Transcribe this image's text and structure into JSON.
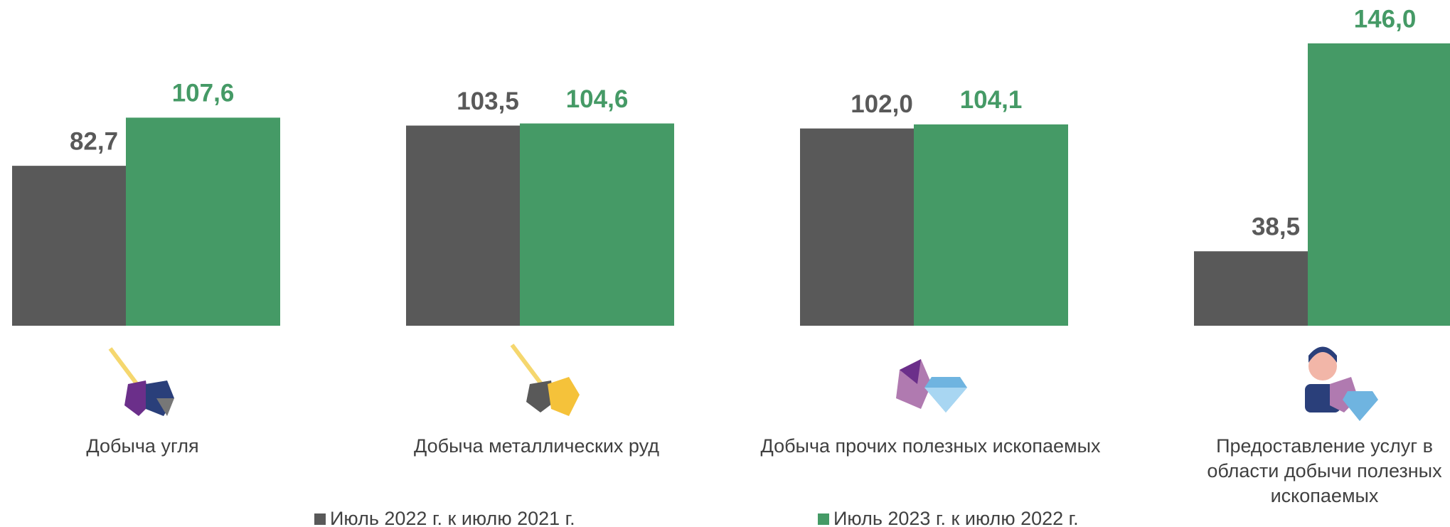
{
  "chart_data": {
    "type": "bar",
    "categories": [
      "Добыча угля",
      "Добыча металлических руд",
      "Добыча прочих полезных ископаемых",
      "Предоставление услуг в области добычи полезных ископаемых"
    ],
    "series": [
      {
        "name": "Июль 2022 г. к июлю 2021 г.",
        "color": "#595959",
        "values": [
          82.7,
          103.5,
          102.0,
          38.5
        ],
        "value_labels": [
          "82,7",
          "103,5",
          "102,0",
          "38,5"
        ]
      },
      {
        "name": "Июль 2023 г. к июлю 2022 г.",
        "color": "#459a66",
        "values": [
          107.6,
          104.6,
          104.1,
          146.0
        ],
        "value_labels": [
          "107,6",
          "104,6",
          "104,1",
          "146,0"
        ]
      }
    ]
  }
}
